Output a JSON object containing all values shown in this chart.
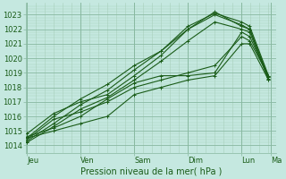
{
  "xlabel": "Pression niveau de la mer( hPa )",
  "bg_color": "#c5e8e0",
  "grid_major_color": "#88b8a0",
  "grid_minor_color": "#a8d0bc",
  "line_color": "#1a5c18",
  "ylim": [
    1013.5,
    1023.8
  ],
  "yticks": [
    1014,
    1015,
    1016,
    1017,
    1018,
    1019,
    1020,
    1021,
    1022,
    1023
  ],
  "day_labels": [
    "Jeu",
    "Ven",
    "Sam",
    "Dim",
    "Lun",
    "Ma"
  ],
  "day_x": [
    0,
    1,
    2,
    3,
    4,
    4.55
  ],
  "xlim": [
    -0.02,
    4.65
  ],
  "series_x": [
    [
      0.0,
      0.5,
      1.0,
      1.5,
      2.0,
      2.5,
      3.0,
      3.5,
      4.0,
      4.15,
      4.5
    ],
    [
      0.0,
      0.5,
      1.0,
      1.5,
      2.0,
      2.5,
      3.0,
      3.5,
      4.0,
      4.15,
      4.5
    ],
    [
      0.0,
      0.5,
      1.0,
      1.5,
      2.0,
      2.5,
      3.0,
      3.5,
      4.0,
      4.15,
      4.5
    ],
    [
      0.0,
      0.5,
      1.0,
      1.5,
      2.0,
      2.5,
      3.0,
      3.5,
      4.0,
      4.15,
      4.5
    ],
    [
      0.0,
      0.5,
      1.0,
      1.5,
      2.0,
      2.5,
      3.0,
      3.5,
      4.0,
      4.15,
      4.5
    ],
    [
      0.0,
      0.5,
      1.0,
      1.5,
      2.0,
      2.5,
      3.0,
      3.5,
      4.0,
      4.15,
      4.5
    ],
    [
      0.0,
      0.5,
      1.0,
      1.5,
      2.0,
      2.5,
      3.0,
      3.5,
      4.0,
      4.15,
      4.5
    ]
  ],
  "series_y": [
    [
      1014.3,
      1015.5,
      1016.8,
      1017.8,
      1019.2,
      1020.5,
      1022.0,
      1023.2,
      1022.2,
      1022.0,
      1018.7
    ],
    [
      1014.5,
      1016.0,
      1017.2,
      1018.2,
      1019.5,
      1020.5,
      1022.2,
      1023.1,
      1022.5,
      1022.2,
      1018.8
    ],
    [
      1014.2,
      1015.3,
      1016.5,
      1017.3,
      1018.5,
      1019.8,
      1021.2,
      1022.5,
      1022.0,
      1021.8,
      1018.5
    ],
    [
      1014.8,
      1016.2,
      1017.0,
      1017.5,
      1018.8,
      1020.2,
      1022.0,
      1023.0,
      1022.3,
      1022.0,
      1018.6
    ],
    [
      1014.4,
      1015.8,
      1016.3,
      1017.0,
      1018.0,
      1018.5,
      1019.0,
      1019.5,
      1021.5,
      1021.2,
      1018.8
    ],
    [
      1014.6,
      1015.2,
      1016.0,
      1017.2,
      1018.3,
      1018.8,
      1018.8,
      1019.0,
      1021.8,
      1021.5,
      1018.7
    ],
    [
      1014.5,
      1015.0,
      1015.5,
      1016.0,
      1017.5,
      1018.0,
      1018.5,
      1018.8,
      1021.0,
      1021.0,
      1018.5
    ]
  ],
  "xlabel_fontsize": 7,
  "ytick_fontsize": 6,
  "xtick_fontsize": 6
}
